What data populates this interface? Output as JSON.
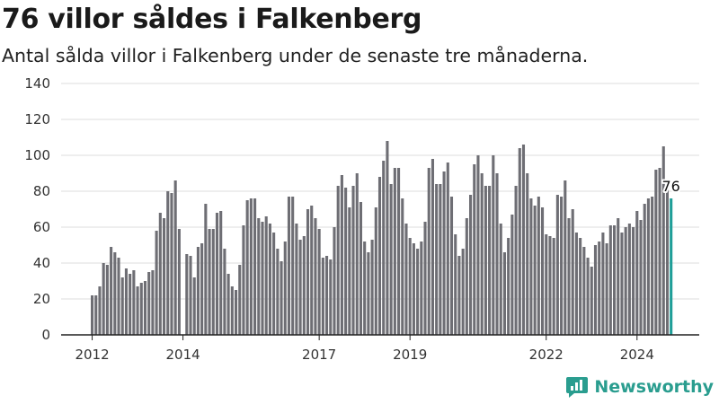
{
  "title": "76 villor såldes i Falkenberg",
  "subtitle": "Antal sålda villor i Falkenberg under de senaste tre månaderna.",
  "brand": "Newsworthy",
  "colors": {
    "bar": "#6e6e74",
    "highlight": "#1f9e98",
    "grid": "#dcdcdc",
    "axis": "#222222",
    "brand": "#2a9d8f"
  },
  "chart_data": {
    "type": "bar",
    "title": "76 villor såldes i Falkenberg",
    "subtitle": "Antal sålda villor i Falkenberg under de senaste tre månaderna.",
    "xlabel": "",
    "ylabel": "",
    "ylim": [
      0,
      140
    ],
    "yticks": [
      0,
      20,
      40,
      60,
      80,
      100,
      120,
      140
    ],
    "grid": true,
    "xticks": [
      {
        "label": "2012",
        "at": "2012-01"
      },
      {
        "label": "2014",
        "at": "2014-01"
      },
      {
        "label": "2017",
        "at": "2017-01"
      },
      {
        "label": "2019",
        "at": "2019-01"
      },
      {
        "label": "2022",
        "at": "2022-01"
      },
      {
        "label": "2024",
        "at": "2024-01"
      }
    ],
    "start_month": "2012-01",
    "values": [
      22,
      22,
      27,
      40,
      39,
      49,
      46,
      43,
      32,
      37,
      34,
      36,
      27,
      29,
      30,
      35,
      36,
      58,
      68,
      65,
      80,
      79,
      86,
      59,
      0,
      45,
      44,
      32,
      49,
      51,
      73,
      59,
      59,
      68,
      69,
      48,
      34,
      27,
      25,
      39,
      61,
      75,
      76,
      76,
      65,
      63,
      66,
      62,
      57,
      48,
      41,
      52,
      77,
      77,
      62,
      53,
      55,
      70,
      72,
      65,
      59,
      43,
      44,
      42,
      60,
      83,
      89,
      82,
      71,
      83,
      90,
      74,
      52,
      46,
      53,
      71,
      88,
      97,
      108,
      84,
      93,
      93,
      76,
      62,
      54,
      51,
      48,
      52,
      63,
      93,
      98,
      84,
      84,
      91,
      96,
      77,
      56,
      44,
      48,
      65,
      78,
      95,
      100,
      90,
      83,
      83,
      100,
      90,
      62,
      46,
      54,
      67,
      83,
      104,
      106,
      90,
      76,
      72,
      77,
      71,
      56,
      55,
      54,
      78,
      77,
      86,
      65,
      70,
      57,
      54,
      49,
      43,
      38,
      50,
      52,
      57,
      51,
      61,
      61,
      65,
      57,
      60,
      62,
      60,
      69,
      64,
      73,
      76,
      77,
      92,
      93,
      105,
      85,
      76
    ],
    "highlight_last": true,
    "last_label": "76"
  }
}
